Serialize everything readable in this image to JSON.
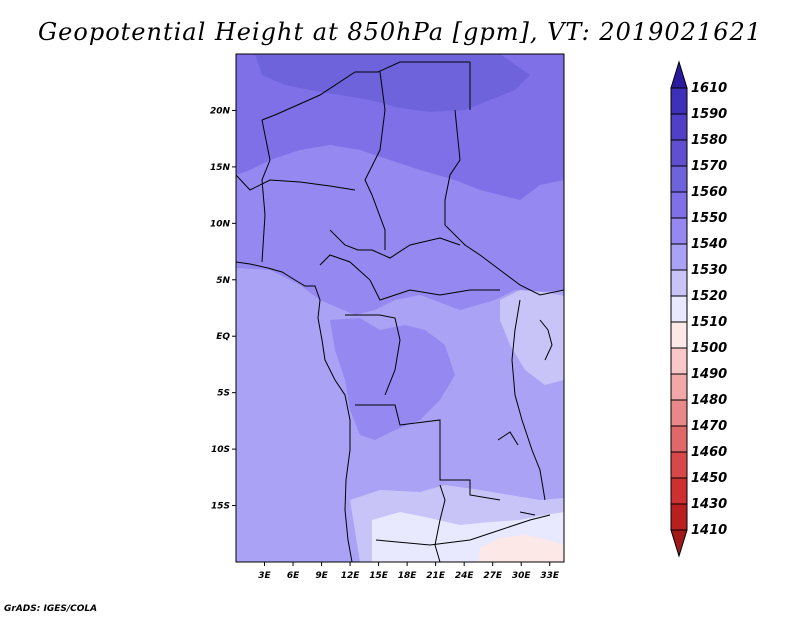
{
  "title": "Geopotential Height at 850hPa [gpm], VT: 2019021621",
  "credit": "GrADS: IGES/COLA",
  "map": {
    "lon_ticks": [
      "3E",
      "6E",
      "9E",
      "12E",
      "15E",
      "18E",
      "21E",
      "24E",
      "27E",
      "30E",
      "33E"
    ],
    "lat_ticks": [
      "20N",
      "15N",
      "10N",
      "5N",
      "EQ",
      "5S",
      "10S",
      "15S"
    ],
    "lon_range": [
      0,
      34.5
    ],
    "lat_range": [
      -20,
      25
    ]
  },
  "colorbar": {
    "levels": [
      "1610",
      "1590",
      "1580",
      "1570",
      "1560",
      "1550",
      "1540",
      "1530",
      "1520",
      "1510",
      "1500",
      "1490",
      "1480",
      "1470",
      "1460",
      "1450",
      "1430",
      "1410"
    ],
    "colors": [
      "#2a1aa0",
      "#3e30b8",
      "#5040c8",
      "#6050d0",
      "#6f63dc",
      "#8070e8",
      "#9588f0",
      "#aaa2f4",
      "#c8c4f8",
      "#e8e8ff",
      "#fde8e8",
      "#f8c8c8",
      "#f0a8a8",
      "#e88888",
      "#e06868",
      "#d84848",
      "#cc3030",
      "#b82020",
      "#a01818"
    ]
  }
}
